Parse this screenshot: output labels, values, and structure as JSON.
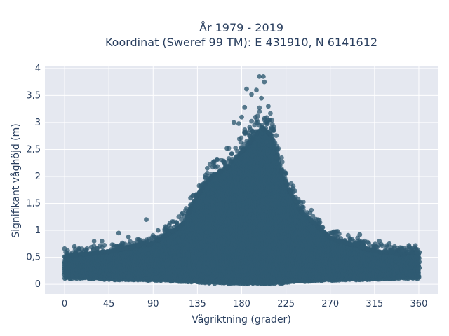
{
  "chart_data": {
    "type": "scatter",
    "title_lines": [
      "År 1979 - 2019",
      "Koordinat (Sweref 99 TM): E 431910, N 6141612"
    ],
    "xlabel": "Vågriktning (grader)",
    "ylabel": "Signifikant våghöjd (m)",
    "xlim": [
      -20,
      380
    ],
    "ylim": [
      -0.18,
      4.05
    ],
    "x_ticks": [
      0,
      45,
      90,
      135,
      180,
      225,
      270,
      315,
      360
    ],
    "x_tick_labels": [
      "0",
      "45",
      "90",
      "135",
      "180",
      "225",
      "270",
      "315",
      "360"
    ],
    "y_ticks": [
      0,
      0.5,
      1,
      1.5,
      2,
      2.5,
      3,
      3.5,
      4
    ],
    "y_tick_labels": [
      "0",
      "0,5",
      "1",
      "1,5",
      "2",
      "2,5",
      "3",
      "3,5",
      "4"
    ],
    "grid": true,
    "marker_color": "#2f5a72",
    "background_color": "#e5e8f0",
    "envelope": {
      "x": [
        0,
        20,
        45,
        90,
        120,
        135,
        150,
        165,
        180,
        190,
        200,
        210,
        220,
        225,
        240,
        270,
        315,
        345,
        360
      ],
      "y_upper": [
        0.5,
        0.55,
        0.6,
        0.75,
        1.1,
        1.65,
        2.0,
        2.15,
        2.45,
        2.65,
        2.9,
        2.75,
        2.1,
        1.85,
        1.35,
        0.85,
        0.6,
        0.55,
        0.6
      ],
      "y_lower": [
        0.12,
        0.12,
        0.1,
        0.08,
        0.06,
        0.05,
        0.03,
        0.02,
        0.02,
        0.02,
        0.02,
        0.02,
        0.03,
        0.04,
        0.06,
        0.08,
        0.1,
        0.12,
        0.12
      ]
    },
    "outliers": [
      {
        "x": 0,
        "y": 0.66
      },
      {
        "x": 10,
        "y": 0.7
      },
      {
        "x": 30,
        "y": 0.8
      },
      {
        "x": 38,
        "y": 0.8
      },
      {
        "x": 55,
        "y": 0.95
      },
      {
        "x": 65,
        "y": 0.88
      },
      {
        "x": 83,
        "y": 1.2
      },
      {
        "x": 95,
        "y": 1.0
      },
      {
        "x": 120,
        "y": 1.32
      },
      {
        "x": 128,
        "y": 1.6
      },
      {
        "x": 145,
        "y": 2.15
      },
      {
        "x": 155,
        "y": 2.32
      },
      {
        "x": 165,
        "y": 2.52
      },
      {
        "x": 172,
        "y": 3.0
      },
      {
        "x": 177,
        "y": 2.98
      },
      {
        "x": 180,
        "y": 3.1
      },
      {
        "x": 183,
        "y": 3.28
      },
      {
        "x": 185,
        "y": 3.62
      },
      {
        "x": 190,
        "y": 3.52
      },
      {
        "x": 195,
        "y": 3.6
      },
      {
        "x": 198,
        "y": 3.85
      },
      {
        "x": 202,
        "y": 3.85
      },
      {
        "x": 203,
        "y": 3.75
      },
      {
        "x": 200,
        "y": 3.45
      },
      {
        "x": 207,
        "y": 3.3
      },
      {
        "x": 210,
        "y": 2.9
      },
      {
        "x": 215,
        "y": 2.35
      },
      {
        "x": 225,
        "y": 1.9
      },
      {
        "x": 235,
        "y": 1.55
      },
      {
        "x": 250,
        "y": 1.2
      },
      {
        "x": 262,
        "y": 1.05
      },
      {
        "x": 275,
        "y": 0.9
      },
      {
        "x": 290,
        "y": 0.85
      },
      {
        "x": 300,
        "y": 0.92
      },
      {
        "x": 320,
        "y": 0.8
      },
      {
        "x": 330,
        "y": 0.75
      },
      {
        "x": 350,
        "y": 0.72
      },
      {
        "x": 358,
        "y": 0.62
      }
    ]
  }
}
